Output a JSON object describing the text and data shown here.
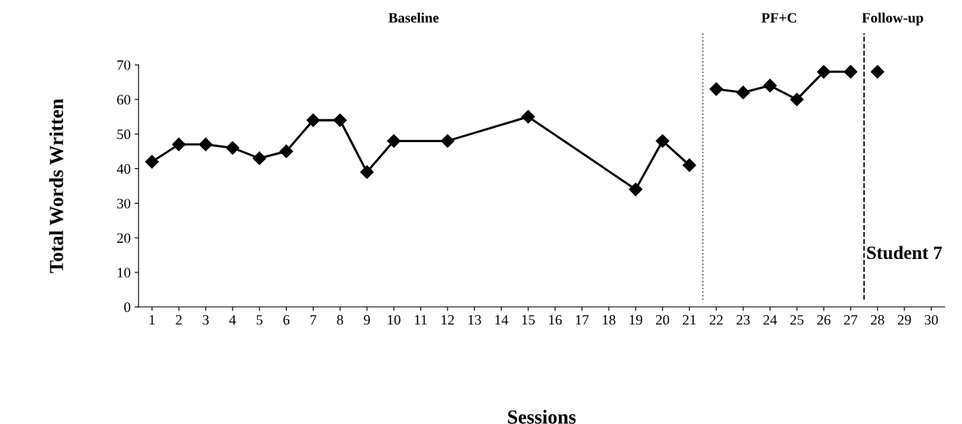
{
  "chart_data": {
    "type": "line",
    "xlabel": "Sessions",
    "ylabel": "Total Words Written",
    "annotations": [
      "Baseline",
      "PF+C",
      "Follow-up",
      "Student 7"
    ],
    "series": [
      {
        "x": [
          1,
          2,
          3,
          4,
          5,
          6,
          7,
          8,
          9,
          10,
          12,
          15,
          19,
          20,
          21
        ],
        "values": [
          42,
          47,
          47,
          46,
          43,
          45,
          54,
          54,
          39,
          48,
          48,
          55,
          34,
          48,
          41
        ],
        "color": "#000000"
      },
      {
        "x": [
          22,
          23,
          24,
          25,
          26,
          27
        ],
        "values": [
          63,
          62,
          64,
          60,
          68,
          68
        ],
        "color": "#000000"
      },
      {
        "type": "scatter",
        "x": [
          28
        ],
        "values": [
          68
        ],
        "color": "#000000"
      }
    ],
    "xlim": [
      0.5,
      30.5
    ],
    "xticks": [
      1,
      2,
      3,
      4,
      5,
      6,
      7,
      8,
      9,
      10,
      11,
      12,
      13,
      14,
      15,
      16,
      17,
      18,
      19,
      20,
      21,
      22,
      23,
      24,
      25,
      26,
      27,
      28,
      29,
      30
    ],
    "ylim": [
      0,
      70
    ],
    "yticks": [
      0,
      10,
      20,
      30,
      40,
      50,
      60,
      70
    ],
    "ref_lines": [
      {
        "axis": "x",
        "value": 21.5,
        "line_style": "dotted",
        "color": "#555555"
      },
      {
        "axis": "x",
        "value": 27.5,
        "line_style": "dashed",
        "color": "#000000"
      }
    ],
    "grid": false,
    "legend": false,
    "marker": "diamond",
    "line_style": "solid"
  }
}
